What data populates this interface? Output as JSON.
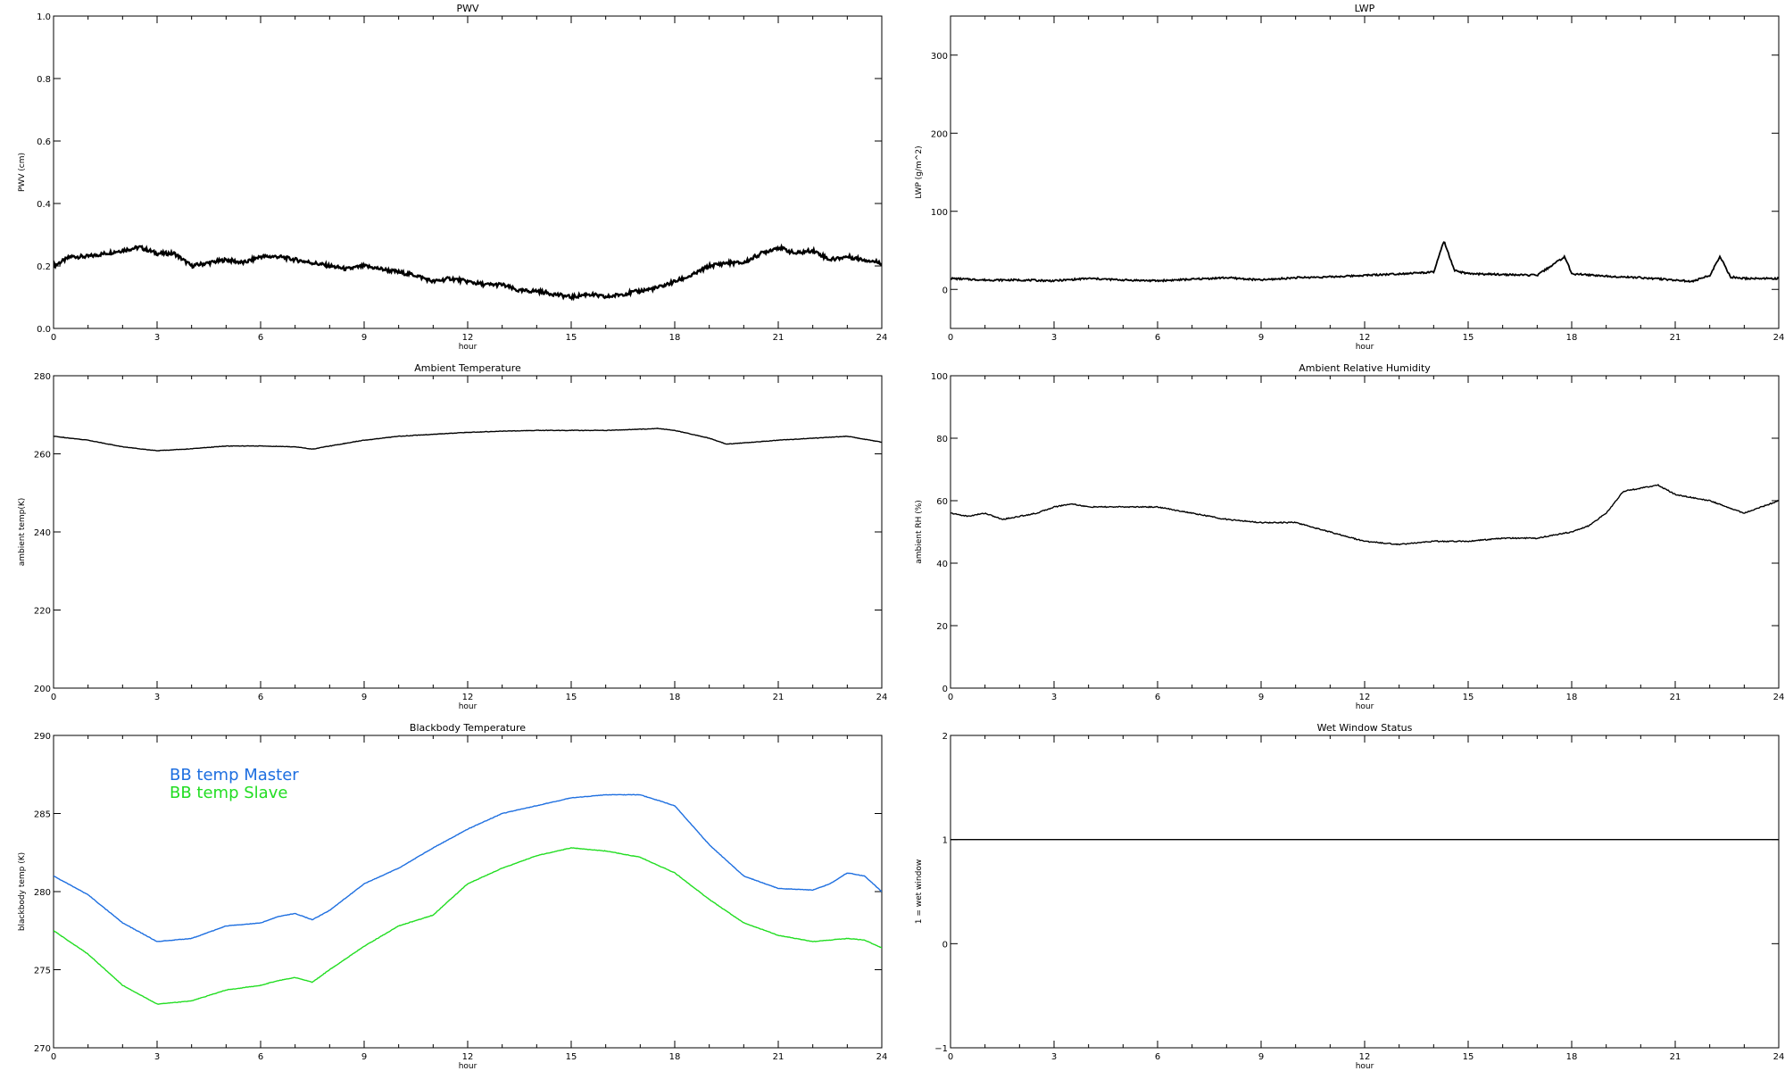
{
  "chart_data": [
    {
      "type": "line",
      "title": "PWV",
      "xlabel": "hour",
      "ylabel": "PWV (cm)",
      "xlim": [
        0,
        24
      ],
      "ylim": [
        0,
        1
      ],
      "xticks": [
        "0",
        "3",
        "6",
        "9",
        "12",
        "15",
        "18",
        "21",
        "24"
      ],
      "yticks": [
        "0.0",
        "0.2",
        "0.4",
        "0.6",
        "0.8",
        "1.0"
      ],
      "grid": false,
      "series": [
        {
          "color": "#000000",
          "x": [
            0,
            0.5,
            1,
            1.5,
            2,
            2.5,
            3,
            3.5,
            4,
            4.5,
            5,
            5.5,
            6,
            6.5,
            7,
            7.5,
            8,
            8.5,
            9,
            9.5,
            10,
            10.5,
            11,
            11.5,
            12,
            12.5,
            13,
            13.5,
            14,
            14.5,
            15,
            15.5,
            16,
            16.5,
            17,
            17.5,
            18,
            18.5,
            19,
            19.5,
            20,
            20.5,
            21,
            21.5,
            22,
            22.5,
            23,
            23.5,
            24
          ],
          "y": [
            0.2,
            0.23,
            0.23,
            0.24,
            0.25,
            0.26,
            0.24,
            0.24,
            0.2,
            0.21,
            0.22,
            0.21,
            0.23,
            0.23,
            0.22,
            0.21,
            0.2,
            0.19,
            0.2,
            0.19,
            0.18,
            0.17,
            0.15,
            0.16,
            0.15,
            0.14,
            0.14,
            0.12,
            0.12,
            0.11,
            0.1,
            0.11,
            0.1,
            0.11,
            0.12,
            0.13,
            0.15,
            0.17,
            0.2,
            0.21,
            0.21,
            0.24,
            0.26,
            0.24,
            0.25,
            0.22,
            0.23,
            0.22,
            0.21
          ]
        }
      ]
    },
    {
      "type": "line",
      "title": "LWP",
      "xlabel": "hour",
      "ylabel": "LWP (g/m^2)",
      "xlim": [
        0,
        24
      ],
      "ylim": [
        -50,
        350
      ],
      "xticks": [
        "0",
        "3",
        "6",
        "9",
        "12",
        "15",
        "18",
        "21",
        "24"
      ],
      "yticks": [
        "0",
        "100",
        "200",
        "300"
      ],
      "grid": false,
      "series": [
        {
          "color": "#000000",
          "x": [
            0,
            1,
            2,
            3,
            4,
            5,
            6,
            7,
            8,
            9,
            10,
            11,
            12,
            13,
            14,
            14.3,
            14.6,
            15,
            16,
            17,
            17.8,
            18,
            19,
            20,
            21,
            21.5,
            22,
            22.3,
            22.6,
            23,
            24
          ],
          "y": [
            14,
            12,
            12,
            11,
            14,
            12,
            11,
            13,
            15,
            12,
            15,
            16,
            18,
            20,
            22,
            62,
            24,
            20,
            19,
            18,
            42,
            20,
            17,
            15,
            12,
            10,
            18,
            42,
            16,
            14,
            14
          ]
        }
      ]
    },
    {
      "type": "line",
      "title": "Ambient Temperature",
      "xlabel": "hour",
      "ylabel": "ambient temp(K)",
      "xlim": [
        0,
        24
      ],
      "ylim": [
        200,
        280
      ],
      "xticks": [
        "0",
        "3",
        "6",
        "9",
        "12",
        "15",
        "18",
        "21",
        "24"
      ],
      "yticks": [
        "200",
        "220",
        "240",
        "260",
        "280"
      ],
      "grid": false,
      "series": [
        {
          "color": "#000000",
          "x": [
            0,
            1,
            2,
            3,
            4,
            5,
            6,
            7,
            7.5,
            8,
            9,
            10,
            11,
            12,
            13,
            14,
            15,
            16,
            17,
            17.5,
            18,
            19,
            19.5,
            20,
            21,
            22,
            23,
            24
          ],
          "y": [
            264.5,
            263.5,
            261.8,
            260.8,
            261.3,
            262,
            262,
            261.8,
            261.2,
            262,
            263.5,
            264.5,
            265,
            265.5,
            265.8,
            266,
            266,
            266,
            266.3,
            266.5,
            266,
            264,
            262.5,
            262.8,
            263.5,
            264,
            264.5,
            263
          ]
        }
      ]
    },
    {
      "type": "line",
      "title": "Ambient Relative Humidity",
      "xlabel": "hour",
      "ylabel": "ambient RH (%)",
      "xlim": [
        0,
        24
      ],
      "ylim": [
        0,
        100
      ],
      "xticks": [
        "0",
        "3",
        "6",
        "9",
        "12",
        "15",
        "18",
        "21",
        "24"
      ],
      "yticks": [
        "0",
        "20",
        "40",
        "60",
        "80",
        "100"
      ],
      "grid": false,
      "series": [
        {
          "color": "#000000",
          "x": [
            0,
            0.5,
            1,
            1.5,
            2,
            2.5,
            3,
            3.5,
            4,
            5,
            6,
            7,
            8,
            9,
            10,
            11,
            12,
            13,
            14,
            15,
            16,
            17,
            18,
            18.5,
            19,
            19.5,
            20,
            20.5,
            21,
            22,
            23,
            23.5,
            24
          ],
          "y": [
            56,
            55,
            56,
            54,
            55,
            56,
            58,
            59,
            58,
            58,
            58,
            56,
            54,
            53,
            53,
            50,
            47,
            46,
            47,
            47,
            48,
            48,
            50,
            52,
            56,
            63,
            64,
            65,
            62,
            60,
            56,
            58,
            60
          ]
        }
      ]
    },
    {
      "type": "line",
      "title": "Blackbody Temperature",
      "xlabel": "hour",
      "ylabel": "blackbody temp (K)",
      "xlim": [
        0,
        24
      ],
      "ylim": [
        270,
        290
      ],
      "xticks": [
        "0",
        "3",
        "6",
        "9",
        "12",
        "15",
        "18",
        "21",
        "24"
      ],
      "yticks": [
        "270",
        "275",
        "280",
        "285",
        "290"
      ],
      "grid": false,
      "legend": {
        "placement": "upper-left",
        "entries": [
          "BB temp Master",
          "BB temp Slave"
        ]
      },
      "series": [
        {
          "name": "BB temp Master",
          "color": "#1e6fe0",
          "x": [
            0,
            1,
            2,
            3,
            4,
            5,
            6,
            6.5,
            7,
            7.5,
            8,
            9,
            10,
            11,
            12,
            13,
            14,
            15,
            16,
            17,
            18,
            19,
            20,
            21,
            22,
            22.5,
            23,
            23.5,
            24
          ],
          "y": [
            281,
            279.8,
            278,
            276.8,
            277,
            277.8,
            278,
            278.4,
            278.6,
            278.2,
            278.8,
            280.5,
            281.5,
            282.8,
            284,
            285,
            285.5,
            286,
            286.2,
            286.2,
            285.5,
            283,
            281,
            280.2,
            280.1,
            280.5,
            281.2,
            281,
            280
          ]
        },
        {
          "name": "BB temp Slave",
          "color": "#22dd22",
          "x": [
            0,
            1,
            2,
            3,
            4,
            5,
            6,
            6.5,
            7,
            7.5,
            8,
            9,
            10,
            11,
            12,
            13,
            14,
            15,
            16,
            17,
            18,
            19,
            20,
            21,
            22,
            22.5,
            23,
            23.5,
            24
          ],
          "y": [
            277.5,
            276,
            274,
            272.8,
            273,
            273.7,
            274,
            274.3,
            274.5,
            274.2,
            275,
            276.5,
            277.8,
            278.5,
            280.5,
            281.5,
            282.3,
            282.8,
            282.6,
            282.2,
            281.2,
            279.5,
            278,
            277.2,
            276.8,
            276.9,
            277,
            276.9,
            276.4
          ]
        }
      ]
    },
    {
      "type": "line",
      "title": "Wet Window Status",
      "xlabel": "hour",
      "ylabel": "1 = wet window",
      "xlim": [
        0,
        24
      ],
      "ylim": [
        -1,
        2
      ],
      "xticks": [
        "0",
        "3",
        "6",
        "9",
        "12",
        "15",
        "18",
        "21",
        "24"
      ],
      "yticks": [
        "−1",
        "0",
        "1",
        "2"
      ],
      "grid": false,
      "series": [
        {
          "color": "#000000",
          "x": [
            0,
            24
          ],
          "y": [
            1,
            1
          ]
        }
      ]
    }
  ]
}
